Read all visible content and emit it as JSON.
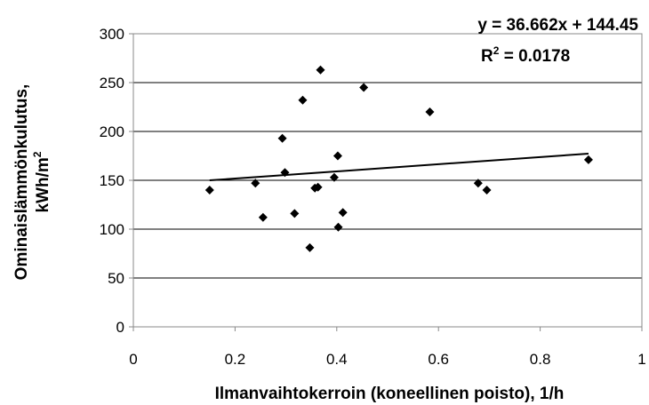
{
  "chart_data": {
    "type": "scatter",
    "xlabel": "Ilmanvaihtokerroin (koneellinen poisto), 1/h",
    "ylabel_line1": "Ominaislämmönkulutus,",
    "ylabel_line2": "kWh/m",
    "ylabel_sup": "2",
    "xlim": [
      0,
      1
    ],
    "ylim": [
      0,
      300
    ],
    "x_ticks": [
      0,
      0.2,
      0.4,
      0.6,
      0.8,
      1
    ],
    "x_tick_labels": [
      "0",
      "0.2",
      "0.4",
      "0.6",
      "0.8",
      "1"
    ],
    "y_ticks": [
      0,
      50,
      100,
      150,
      200,
      250,
      300
    ],
    "y_tick_labels": [
      "0",
      "50",
      "100",
      "150",
      "200",
      "250",
      "300"
    ],
    "grid": "horizontal",
    "marker": "diamond",
    "marker_color": "#000000",
    "points": [
      {
        "x": 0.15,
        "y": 140
      },
      {
        "x": 0.24,
        "y": 147
      },
      {
        "x": 0.255,
        "y": 112
      },
      {
        "x": 0.293,
        "y": 193
      },
      {
        "x": 0.298,
        "y": 158
      },
      {
        "x": 0.317,
        "y": 116
      },
      {
        "x": 0.333,
        "y": 232
      },
      {
        "x": 0.347,
        "y": 81
      },
      {
        "x": 0.357,
        "y": 142
      },
      {
        "x": 0.363,
        "y": 143
      },
      {
        "x": 0.368,
        "y": 263
      },
      {
        "x": 0.395,
        "y": 153
      },
      {
        "x": 0.402,
        "y": 175
      },
      {
        "x": 0.403,
        "y": 102
      },
      {
        "x": 0.412,
        "y": 117
      },
      {
        "x": 0.453,
        "y": 245
      },
      {
        "x": 0.583,
        "y": 220
      },
      {
        "x": 0.678,
        "y": 147
      },
      {
        "x": 0.695,
        "y": 140
      },
      {
        "x": 0.895,
        "y": 171
      }
    ],
    "trendline": {
      "slope": 36.662,
      "intercept": 144.45,
      "x_start": 0.15,
      "x_end": 0.895
    },
    "equation_label": "y = 36.662x + 144.45",
    "r2_prefix": "R",
    "r2_sup": "2",
    "r2_value": " = 0.0178"
  }
}
